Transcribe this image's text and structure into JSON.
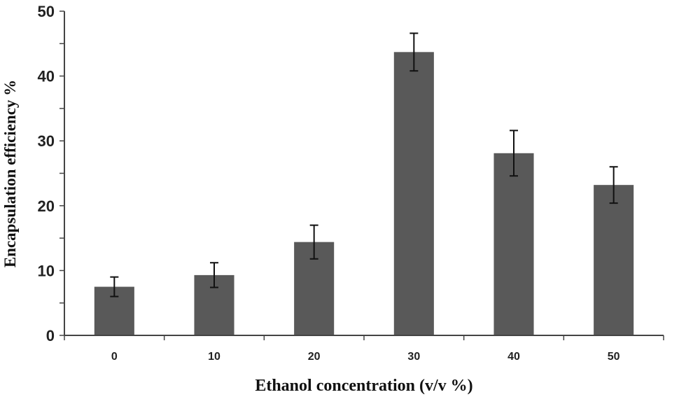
{
  "chart_data": {
    "type": "bar",
    "title": "",
    "xlabel": "Ethanol concentration (v/v %)",
    "ylabel": "Encapsulation efficiency %",
    "categories": [
      "0",
      "10",
      "20",
      "30",
      "40",
      "50"
    ],
    "values": [
      7.5,
      9.3,
      14.4,
      43.7,
      28.1,
      23.2
    ],
    "error": [
      1.5,
      1.9,
      2.6,
      2.9,
      3.5,
      2.8
    ],
    "ylim": [
      0,
      50
    ],
    "yticks": [
      0,
      10,
      20,
      30,
      40,
      50
    ],
    "grid": false,
    "bar_color": "#595959"
  }
}
